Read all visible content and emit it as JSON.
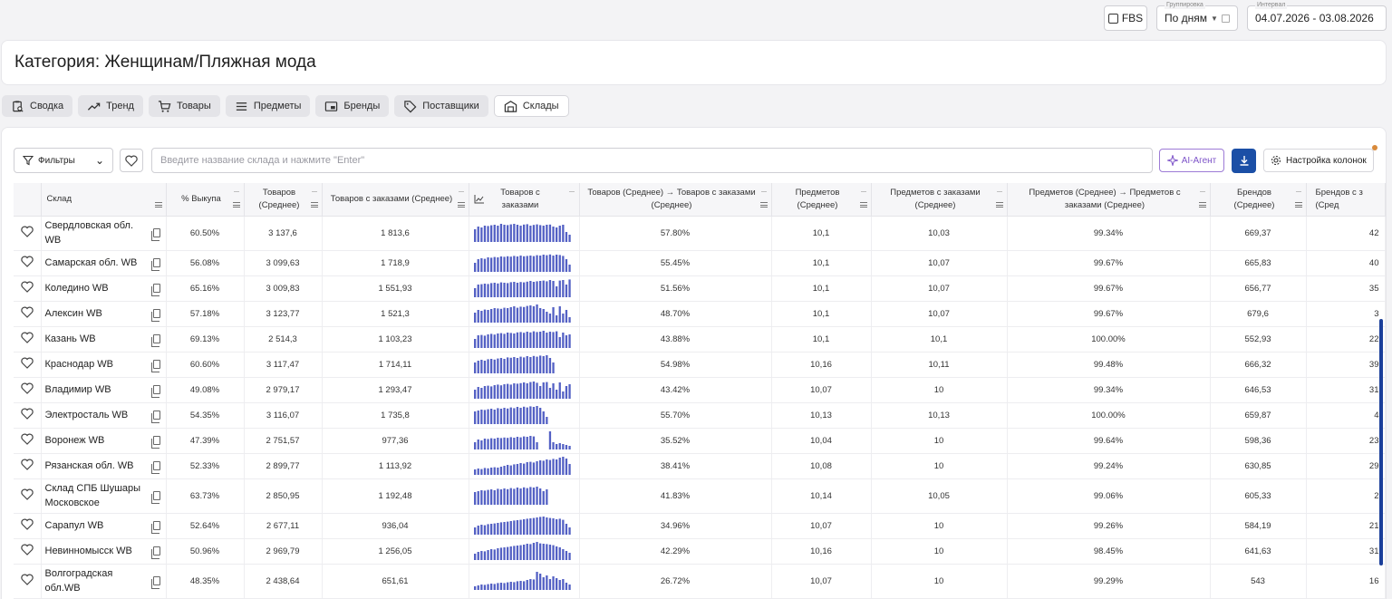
{
  "topbar": {
    "fbs_label": "FBS",
    "grouping_legend": "Группировка",
    "grouping_value": "По дням",
    "interval_legend": "Интервал",
    "interval_value": "04.07.2026 - 03.08.2026"
  },
  "page_title": "Категория: Женщинам/Пляжная мода",
  "tabs": [
    {
      "label": "Сводка",
      "icon": "clipboard-search-icon"
    },
    {
      "label": "Тренд",
      "icon": "trend-icon"
    },
    {
      "label": "Товары",
      "icon": "cart-icon"
    },
    {
      "label": "Предметы",
      "icon": "list-icon"
    },
    {
      "label": "Бренды",
      "icon": "brand-icon"
    },
    {
      "label": "Поставщики",
      "icon": "tag-icon"
    },
    {
      "label": "Склады",
      "icon": "warehouse-icon",
      "active": true
    }
  ],
  "toolbar": {
    "filters_label": "Фильтры",
    "search_placeholder": "Введите название склада и нажмите \"Enter\"",
    "ai_label": "AI-Агент",
    "columns_label": "Настройка колонок"
  },
  "table": {
    "headers": {
      "warehouse": "Склад",
      "buyout": "% Выкупа",
      "goods": "Товаров (Среднее)",
      "goods_orders": "Товаров с заказами (Среднее)",
      "goods_orders_chart": "Товаров с заказами",
      "goods_ratio": "Товаров (Среднее) → Товаров с заказами (Среднее)",
      "subjects": "Предметов (Среднее)",
      "subjects_orders": "Предметов с заказами (Среднее)",
      "subjects_ratio": "Предметов (Среднее) → Предметов с заказами (Среднее)",
      "brands": "Брендов (Среднее)",
      "brands_orders": "Брендов с з (Сред"
    },
    "rows": [
      {
        "name": "Свердловская обл. WB",
        "buyout": "60.50%",
        "goods": "3 137,6",
        "goods_orders": "1 813,6",
        "ratio": "57.80%",
        "subjects": "10,1",
        "subjects_orders": "10,03",
        "subjects_ratio": "99.34%",
        "brands": "669,37",
        "brands_orders": "42",
        "spark": [
          0.7,
          0.85,
          0.8,
          0.9,
          0.88,
          0.92,
          0.95,
          0.9,
          1,
          0.95,
          0.93,
          0.97,
          1,
          0.95,
          0.9,
          0.96,
          0.98,
          0.9,
          0.94,
          0.97,
          0.93,
          0.9,
          0.95,
          0.96,
          0.85,
          0.8,
          0.9,
          0.95,
          0.55,
          0.4,
          0.85
        ]
      },
      {
        "name": "Самарская обл. WB",
        "buyout": "56.08%",
        "goods": "3 099,63",
        "goods_orders": "1 718,9",
        "ratio": "55.45%",
        "subjects": "10,1",
        "subjects_orders": "10,07",
        "subjects_ratio": "99.67%",
        "brands": "665,83",
        "brands_orders": "40",
        "spark": [
          0.5,
          0.7,
          0.75,
          0.72,
          0.8,
          0.78,
          0.82,
          0.8,
          0.85,
          0.83,
          0.86,
          0.84,
          0.88,
          0.85,
          0.9,
          0.86,
          0.88,
          0.9,
          0.87,
          0.92,
          0.9,
          0.95,
          0.92,
          0.96,
          0.9,
          0.95,
          0.93,
          0.88,
          0.7,
          0.4
        ]
      },
      {
        "name": "Коледино WB",
        "buyout": "65.16%",
        "goods": "3 009,83",
        "goods_orders": "1 551,93",
        "ratio": "51.56%",
        "subjects": "10,1",
        "subjects_orders": "10,07",
        "subjects_ratio": "99.67%",
        "brands": "656,77",
        "brands_orders": "35",
        "spark": [
          0.5,
          0.7,
          0.72,
          0.75,
          0.73,
          0.78,
          0.8,
          0.76,
          0.82,
          0.8,
          0.78,
          0.83,
          0.85,
          0.8,
          0.84,
          0.82,
          0.86,
          0.9,
          0.85,
          0.88,
          0.9,
          0.92,
          0.88,
          0.95,
          0.9,
          0.6,
          0.92,
          0.95,
          0.7,
          0.98
        ]
      },
      {
        "name": "Алексин WB",
        "buyout": "57.18%",
        "goods": "3 123,77",
        "goods_orders": "1 521,3",
        "ratio": "48.70%",
        "subjects": "10,1",
        "subjects_orders": "10,07",
        "subjects_ratio": "99.67%",
        "brands": "679,6",
        "brands_orders": "3",
        "spark": [
          0.55,
          0.7,
          0.65,
          0.72,
          0.7,
          0.75,
          0.8,
          0.78,
          0.76,
          0.82,
          0.8,
          0.85,
          0.9,
          0.82,
          0.88,
          0.86,
          0.92,
          0.95,
          0.9,
          1,
          0.8,
          0.75,
          0.6,
          0.5,
          0.85,
          0.4,
          0.9,
          0.5,
          0.7,
          0.3
        ]
      },
      {
        "name": "Казань WB",
        "buyout": "69.13%",
        "goods": "2 514,3",
        "goods_orders": "1 103,23",
        "ratio": "43.88%",
        "subjects": "10,1",
        "subjects_orders": "10,1",
        "subjects_ratio": "100.00%",
        "brands": "552,93",
        "brands_orders": "22",
        "spark": [
          0.5,
          0.7,
          0.72,
          0.68,
          0.75,
          0.78,
          0.74,
          0.8,
          0.82,
          0.78,
          0.85,
          0.83,
          0.8,
          0.86,
          0.88,
          0.84,
          0.9,
          0.86,
          0.92,
          0.88,
          0.9,
          0.95,
          0.85,
          0.9,
          0.88,
          0.92,
          0.6,
          0.85,
          0.7,
          0.75
        ]
      },
      {
        "name": "Краснодар WB",
        "buyout": "60.60%",
        "goods": "3 117,47",
        "goods_orders": "1 714,11",
        "ratio": "54.98%",
        "subjects": "10,16",
        "subjects_orders": "10,11",
        "subjects_ratio": "99.48%",
        "brands": "666,32",
        "brands_orders": "39",
        "spark": [
          0.6,
          0.7,
          0.75,
          0.7,
          0.78,
          0.8,
          0.76,
          0.82,
          0.85,
          0.8,
          0.88,
          0.86,
          0.9,
          0.85,
          0.92,
          0.88,
          0.95,
          0.9,
          0.96,
          0.92,
          0.98,
          0.95,
          1,
          0.85,
          0.6,
          0,
          0,
          0,
          0,
          0
        ]
      },
      {
        "name": "Владимир WB",
        "buyout": "49.08%",
        "goods": "2 979,17",
        "goods_orders": "1 293,47",
        "ratio": "43.42%",
        "subjects": "10,07",
        "subjects_orders": "10",
        "subjects_ratio": "99.34%",
        "brands": "646,53",
        "brands_orders": "31",
        "spark": [
          0.5,
          0.65,
          0.6,
          0.7,
          0.72,
          0.68,
          0.75,
          0.78,
          0.74,
          0.8,
          0.82,
          0.78,
          0.85,
          0.83,
          0.86,
          0.9,
          0.85,
          0.92,
          0.95,
          0.88,
          0.7,
          0.9,
          0.92,
          0.6,
          0.85,
          0.5,
          0.9,
          0.4,
          0.7,
          0.8
        ]
      },
      {
        "name": "Электросталь WB",
        "buyout": "54.35%",
        "goods": "3 116,07",
        "goods_orders": "1 735,8",
        "ratio": "55.70%",
        "subjects": "10,13",
        "subjects_orders": "10,13",
        "subjects_ratio": "100.00%",
        "brands": "659,87",
        "brands_orders": "4",
        "spark": [
          0.7,
          0.75,
          0.8,
          0.78,
          0.82,
          0.85,
          0.8,
          0.88,
          0.85,
          0.9,
          0.86,
          0.92,
          0.88,
          0.95,
          0.9,
          0.96,
          0.92,
          0.98,
          0.95,
          1,
          0.9,
          0.7,
          0.4,
          0,
          0,
          0,
          0,
          0,
          0,
          0
        ]
      },
      {
        "name": "Воронеж WB",
        "buyout": "47.39%",
        "goods": "2 751,57",
        "goods_orders": "977,36",
        "ratio": "35.52%",
        "subjects": "10,04",
        "subjects_orders": "10",
        "subjects_ratio": "99.64%",
        "brands": "598,36",
        "brands_orders": "23",
        "spark": [
          0.4,
          0.55,
          0.5,
          0.6,
          0.58,
          0.62,
          0.6,
          0.65,
          0.63,
          0.66,
          0.64,
          0.68,
          0.65,
          0.7,
          0.67,
          0.72,
          0.7,
          0.75,
          0.72,
          0.4,
          0,
          0,
          0,
          1,
          0.4,
          0.3,
          0.35,
          0.3,
          0.25,
          0.2
        ]
      },
      {
        "name": "Рязанская обл. WB",
        "buyout": "52.33%",
        "goods": "2 899,77",
        "goods_orders": "1 113,92",
        "ratio": "38.41%",
        "subjects": "10,08",
        "subjects_orders": "10",
        "subjects_ratio": "99.24%",
        "brands": "630,85",
        "brands_orders": "29",
        "spark": [
          0.3,
          0.35,
          0.32,
          0.38,
          0.36,
          0.4,
          0.42,
          0.4,
          0.45,
          0.5,
          0.55,
          0.52,
          0.58,
          0.6,
          0.65,
          0.62,
          0.7,
          0.72,
          0.68,
          0.75,
          0.8,
          0.78,
          0.85,
          0.82,
          0.88,
          0.85,
          0.95,
          1,
          0.9,
          0.6
        ]
      },
      {
        "name": "Склад СПБ Шушары Московское",
        "buyout": "63.73%",
        "goods": "2 850,95",
        "goods_orders": "1 192,48",
        "ratio": "41.83%",
        "subjects": "10,14",
        "subjects_orders": "10,05",
        "subjects_ratio": "99.06%",
        "brands": "605,33",
        "brands_orders": "2",
        "spark": [
          0.7,
          0.75,
          0.8,
          0.78,
          0.82,
          0.85,
          0.8,
          0.88,
          0.85,
          0.9,
          0.86,
          0.92,
          0.88,
          0.95,
          0.9,
          0.96,
          0.92,
          0.98,
          0.95,
          1,
          0.9,
          0.75,
          0.85,
          0,
          0,
          0,
          0,
          0,
          0,
          0
        ]
      },
      {
        "name": "Сарапул WB",
        "buyout": "52.64%",
        "goods": "2 677,11",
        "goods_orders": "936,04",
        "ratio": "34.96%",
        "subjects": "10,07",
        "subjects_orders": "10",
        "subjects_ratio": "99.26%",
        "brands": "584,19",
        "brands_orders": "21",
        "spark": [
          0.4,
          0.5,
          0.55,
          0.52,
          0.58,
          0.6,
          0.62,
          0.65,
          0.68,
          0.7,
          0.72,
          0.75,
          0.78,
          0.8,
          0.82,
          0.85,
          0.88,
          0.9,
          0.92,
          0.95,
          0.98,
          1,
          0.95,
          0.92,
          0.9,
          0.85,
          0.88,
          0.82,
          0.6,
          0.4
        ]
      },
      {
        "name": "Невинномысск WB",
        "buyout": "50.96%",
        "goods": "2 969,79",
        "goods_orders": "1 256,05",
        "ratio": "42.29%",
        "subjects": "10,16",
        "subjects_orders": "10",
        "subjects_ratio": "98.45%",
        "brands": "641,63",
        "brands_orders": "31",
        "spark": [
          0.35,
          0.45,
          0.5,
          0.48,
          0.55,
          0.6,
          0.58,
          0.65,
          0.68,
          0.7,
          0.72,
          0.75,
          0.78,
          0.8,
          0.82,
          0.85,
          0.9,
          0.88,
          0.95,
          1,
          0.92,
          0.9,
          0.88,
          0.85,
          0.82,
          0.75,
          0.7,
          0.6,
          0.5,
          0.4
        ]
      },
      {
        "name": "Волгоградская обл.WB",
        "buyout": "48.35%",
        "goods": "2 438,64",
        "goods_orders": "651,61",
        "ratio": "26.72%",
        "subjects": "10,07",
        "subjects_orders": "10",
        "subjects_ratio": "99.29%",
        "brands": "543",
        "brands_orders": "16",
        "spark": [
          0.2,
          0.25,
          0.3,
          0.28,
          0.32,
          0.35,
          0.33,
          0.38,
          0.4,
          0.38,
          0.42,
          0.45,
          0.43,
          0.48,
          0.5,
          0.48,
          0.55,
          0.6,
          0.58,
          1,
          0.9,
          0.7,
          0.8,
          0.6,
          0.75,
          0.65,
          0.55,
          0.6,
          0.4,
          0.3
        ]
      }
    ]
  },
  "colors": {
    "spark": "#5360c4",
    "primary": "#1b4fa6",
    "ai": "#7c52c8"
  }
}
